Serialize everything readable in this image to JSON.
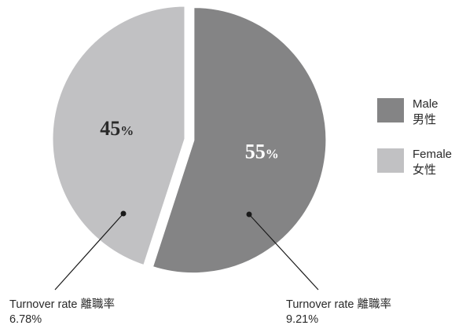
{
  "chart_data": {
    "type": "pie",
    "slices": [
      {
        "key": "male",
        "label_en": "Male",
        "label_zh": "男性",
        "value": 55,
        "value_text": "55",
        "unit": "%",
        "color": "#848485",
        "text_color": "#ffffff",
        "exploded": true,
        "turnover_label": "Turnover rate 離職率",
        "turnover_value": "9.21%"
      },
      {
        "key": "female",
        "label_en": "Female",
        "label_zh": "女性",
        "value": 45,
        "value_text": "45",
        "unit": "%",
        "color": "#c1c1c3",
        "text_color": "#2a2a2a",
        "exploded": false,
        "turnover_label": "Turnover rate 離職率",
        "turnover_value": "6.78%"
      }
    ],
    "start_angle": "12 o'clock",
    "direction": "clockwise",
    "legend_placement": "right"
  }
}
